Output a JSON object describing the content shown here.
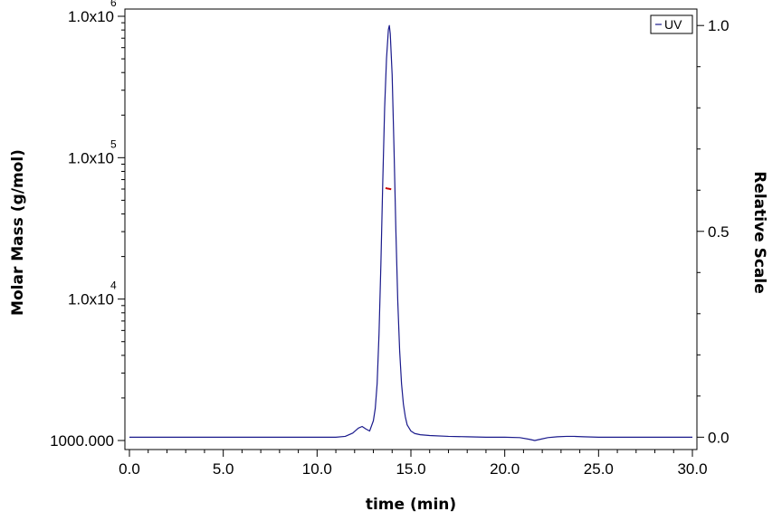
{
  "chart_data": {
    "type": "line",
    "xlabel": "time (min)",
    "ylabel_left": "Molar Mass (g/mol)",
    "ylabel_right": "Relative Scale",
    "xlim": [
      0,
      30
    ],
    "x_ticks": [
      "0.0",
      "5.0",
      "10.0",
      "15.0",
      "20.0",
      "25.0",
      "30.0"
    ],
    "left_axis": {
      "scale": "log",
      "range": [
        1000,
        1000000
      ],
      "ticks": [
        {
          "value": 1000,
          "base": "1000.000",
          "exp": ""
        },
        {
          "value": 10000,
          "base": "1.0x10",
          "exp": "4"
        },
        {
          "value": 100000,
          "base": "1.0x10",
          "exp": "5"
        },
        {
          "value": 1000000,
          "base": "1.0x10",
          "exp": "6"
        }
      ]
    },
    "right_axis": {
      "range": [
        -0.03,
        1.04
      ],
      "ticks": [
        "0.0",
        "0.5",
        "1.0"
      ]
    },
    "legend": {
      "position": "top-right",
      "entries": [
        "UV"
      ]
    },
    "series": [
      {
        "name": "UV",
        "color": "#1a1a8c",
        "axis": "right",
        "x": [
          0.0,
          2.0,
          4.0,
          6.0,
          8.0,
          10.0,
          11.0,
          11.5,
          11.9,
          12.2,
          12.4,
          12.6,
          12.8,
          13.0,
          13.1,
          13.2,
          13.3,
          13.4,
          13.5,
          13.6,
          13.7,
          13.8,
          13.85,
          13.9,
          14.0,
          14.1,
          14.2,
          14.3,
          14.4,
          14.5,
          14.6,
          14.7,
          14.8,
          15.0,
          15.2,
          15.5,
          16.0,
          17.0,
          18.0,
          19.0,
          20.0,
          20.8,
          21.3,
          21.6,
          21.9,
          22.3,
          22.8,
          23.3,
          23.7,
          24.2,
          25.0,
          26.0,
          28.0,
          30.0
        ],
        "y": [
          0.0,
          0.0,
          0.0,
          0.0,
          0.0,
          0.0,
          0.0,
          0.002,
          0.01,
          0.022,
          0.026,
          0.02,
          0.015,
          0.04,
          0.07,
          0.13,
          0.25,
          0.42,
          0.62,
          0.8,
          0.92,
          0.99,
          1.0,
          0.98,
          0.88,
          0.7,
          0.5,
          0.33,
          0.21,
          0.13,
          0.08,
          0.05,
          0.03,
          0.015,
          0.009,
          0.006,
          0.004,
          0.002,
          0.001,
          0.0,
          0.0,
          -0.001,
          -0.005,
          -0.008,
          -0.005,
          -0.001,
          0.001,
          0.002,
          0.002,
          0.001,
          0.0,
          0.0,
          0.0,
          0.0
        ]
      },
      {
        "name": "Molar Mass",
        "color": "#cc0000",
        "axis": "left",
        "x": [
          13.65,
          13.75,
          13.85,
          13.95
        ],
        "y": [
          61000,
          60500,
          60200,
          59800
        ]
      }
    ]
  }
}
